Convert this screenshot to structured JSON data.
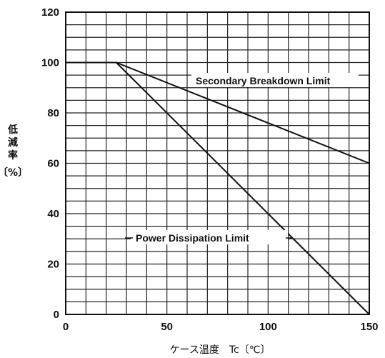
{
  "chart_data": {
    "type": "line",
    "xlabel": "ケース温度　Tc〔℃〕",
    "ylabel": [
      "低",
      "減",
      "率"
    ],
    "ylabel_unit": "〔%〕",
    "xlim": [
      0,
      150
    ],
    "ylim": [
      0,
      120
    ],
    "x_ticks": [
      "0",
      "50",
      "100",
      "150"
    ],
    "y_ticks": [
      "0",
      "20",
      "40",
      "60",
      "80",
      "100",
      "120"
    ],
    "grid": true,
    "series": [
      {
        "name": "Secondary Breakdown Limit",
        "x": [
          0,
          25,
          150
        ],
        "y": [
          100,
          100,
          60
        ]
      },
      {
        "name": "Power Dissipation Limit",
        "x": [
          0,
          25,
          150
        ],
        "y": [
          100,
          100,
          0
        ]
      }
    ]
  }
}
